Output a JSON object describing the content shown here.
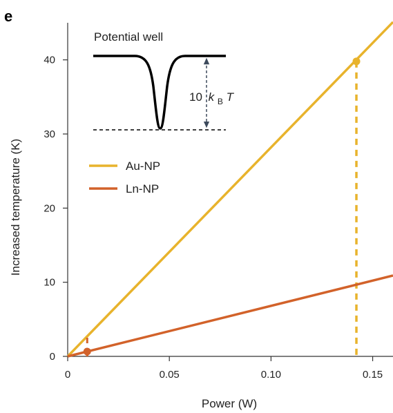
{
  "panel_label": "e",
  "chart_data": {
    "type": "line",
    "xlabel": "Power (W)",
    "ylabel": "Increased temperature (K)",
    "xlim": [
      0,
      0.16
    ],
    "ylim": [
      0,
      45
    ],
    "xticks": [
      0,
      0.05,
      0.1,
      0.15
    ],
    "xtick_labels": [
      "0",
      "0.05",
      "0.10",
      "0.15"
    ],
    "yticks": [
      0,
      10,
      20,
      30,
      40
    ],
    "ytick_labels": [
      "0",
      "10",
      "20",
      "30",
      "40"
    ],
    "grid": false,
    "legend_position": "upper-left",
    "series": [
      {
        "name": "Au-NP",
        "color": "#E8B32C",
        "x": [
          0,
          0.16
        ],
        "y": [
          0,
          45.1
        ],
        "marker": {
          "x": 0.142,
          "y": 39.8
        }
      },
      {
        "name": "Ln-NP",
        "color": "#D2622A",
        "x": [
          0,
          0.16
        ],
        "y": [
          0,
          10.9
        ],
        "marker": {
          "x": 0.0096,
          "y": 0.65
        }
      }
    ],
    "inset": {
      "title": "Potential well",
      "label_prefix": "10",
      "label_k": "k",
      "label_sub": "B",
      "label_T": "T"
    }
  }
}
